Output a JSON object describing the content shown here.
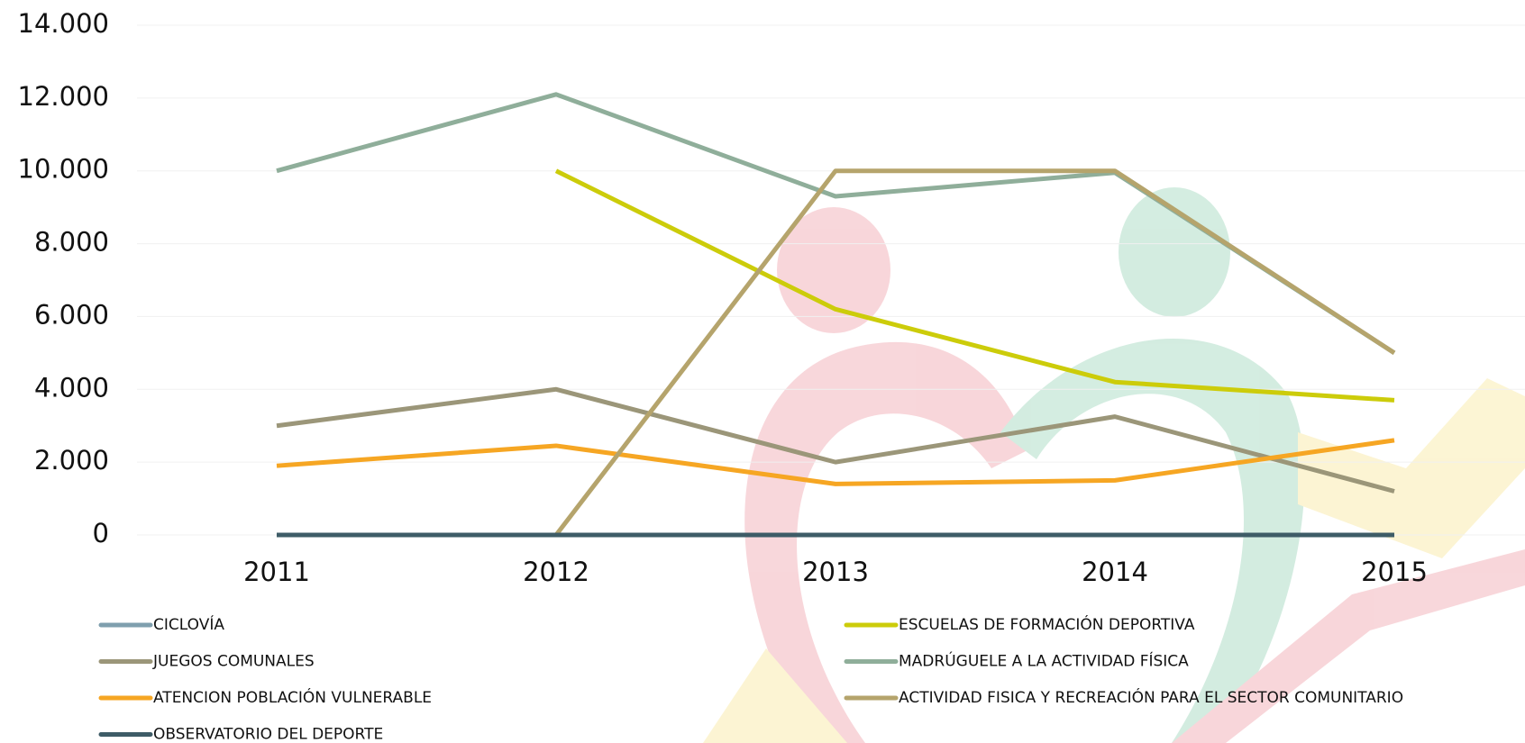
{
  "chart_data": {
    "type": "line",
    "categories": [
      "2011",
      "2012",
      "2013",
      "2014",
      "2015"
    ],
    "series": [
      {
        "name": "CICLOVÍA",
        "color": "#7f9fae",
        "values": [
          0,
          0,
          0,
          0,
          0
        ]
      },
      {
        "name": "ESCUELAS DE FORMACIÓN DEPORTIVA",
        "color": "#cccc0a",
        "values": [
          null,
          10000,
          6200,
          4200,
          3700
        ]
      },
      {
        "name": "JUEGOS COMUNALES",
        "color": "#9b9679",
        "values": [
          3000,
          4000,
          2000,
          3250,
          1200
        ]
      },
      {
        "name": "MADRÚGUELE A LA ACTIVIDAD FÍSICA",
        "color": "#8fae9a",
        "values": [
          10000,
          12100,
          9300,
          9950,
          5000
        ]
      },
      {
        "name": "ATENCION POBLACIÓN VULNERABLE",
        "color": "#f6a623",
        "values": [
          1900,
          2450,
          1400,
          1500,
          2600
        ]
      },
      {
        "name": "ACTIVIDAD FISICA Y RECREACIÓN PARA EL SECTOR COMUNITARIO",
        "color": "#b5a46c",
        "values": [
          null,
          0,
          10000,
          10000,
          5000
        ]
      },
      {
        "name": "OBSERVATORIO DEL DEPORTE",
        "color": "#3e5c67",
        "values": [
          0,
          0,
          0,
          0,
          0
        ]
      }
    ],
    "ylim": [
      0,
      14000
    ],
    "yticks": [
      0,
      {
        "value": 2000,
        "label": "2.000"
      },
      {
        "value": 4000,
        "label": "4.000"
      },
      {
        "value": 6000,
        "label": "6.000"
      },
      {
        "value": 8000,
        "label": "8.000"
      },
      {
        "value": 10000,
        "label": "10.000"
      },
      {
        "value": 12000,
        "label": "12.000"
      },
      {
        "value": 14000,
        "label": "14.000"
      }
    ],
    "grid": true
  }
}
